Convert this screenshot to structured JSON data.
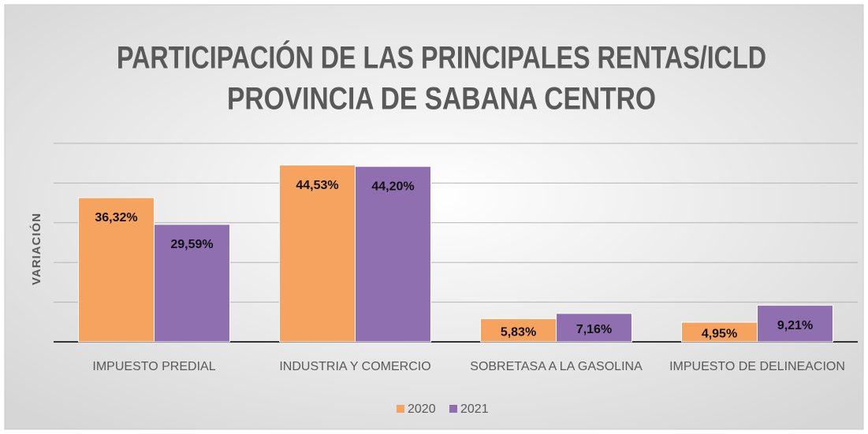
{
  "chart_data": {
    "type": "bar",
    "title": "PARTICIPACIÓN DE LAS PRINCIPALES  RENTAS/ICLD",
    "subtitle": "PROVINCIA DE SABANA CENTRO",
    "y_label": "VARIACIÓN",
    "categories": [
      "IMPUESTO PREDIAL",
      "INDUSTRIA Y COMERCIO",
      "SOBRETASA A LA GASOLINA",
      "IMPUESTO DE DELINEACION"
    ],
    "series": [
      {
        "name": "2020",
        "color": "#f5a35f",
        "values": [
          36.32,
          44.53,
          5.83,
          4.95
        ],
        "value_labels": [
          "36,32%",
          "44,53%",
          "5,83%",
          "4,95%"
        ]
      },
      {
        "name": "2021",
        "color": "#8f6fb0",
        "values": [
          29.59,
          44.2,
          7.16,
          9.21
        ],
        "value_labels": [
          "29,59%",
          "44,20%",
          "7,16%",
          "9,21%"
        ]
      }
    ],
    "ylim": [
      0,
      50
    ],
    "yticks": [
      0,
      10,
      20,
      30,
      40,
      50
    ],
    "grid": true,
    "legend": "bottom"
  }
}
